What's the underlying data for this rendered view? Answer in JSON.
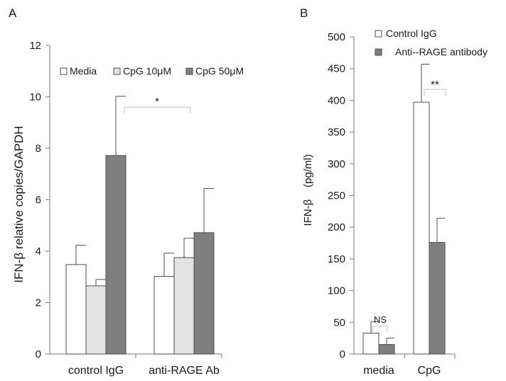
{
  "chart_data": [
    {
      "panel_label": "A",
      "type": "bar",
      "title": "",
      "ylabel": "IFN-β relative copies/GAPDH",
      "xlabel": "",
      "ylim": [
        0,
        12
      ],
      "yticks": [
        0,
        2,
        4,
        6,
        8,
        10,
        12
      ],
      "categories": [
        "control IgG",
        "anti-RAGE Ab"
      ],
      "series": [
        {
          "name": "Media",
          "color": "#ffffff",
          "values": [
            3.48,
            3.02
          ],
          "errors": [
            0.75,
            0.9
          ]
        },
        {
          "name": "CpG 10μM",
          "color": "#e3e3e3",
          "values": [
            2.65,
            3.75
          ],
          "errors": [
            0.25,
            0.75
          ]
        },
        {
          "name": "CpG 50μM",
          "color": "#7f7f7f",
          "values": [
            7.72,
            4.72
          ],
          "errors": [
            2.3,
            1.72
          ]
        }
      ],
      "legend_position": "top",
      "grid": false,
      "annotations": [
        {
          "text": "*",
          "between": [
            "control IgG / CpG 50μM",
            "anti-RAGE Ab / CpG 50μM"
          ]
        }
      ]
    },
    {
      "panel_label": "B",
      "type": "bar",
      "title": "",
      "ylabel": "IFN-β    (pg/ml)",
      "xlabel": "",
      "ylim": [
        0,
        500
      ],
      "yticks": [
        0,
        50,
        100,
        150,
        200,
        250,
        300,
        350,
        400,
        450,
        500
      ],
      "categories": [
        "media",
        "CpG"
      ],
      "series": [
        {
          "name": "Control IgG",
          "color": "#ffffff",
          "values": [
            33,
            397
          ],
          "errors": [
            18,
            60
          ]
        },
        {
          "name": "Anti--RAGE antibody",
          "color": "#7f7f7f",
          "values": [
            15,
            176
          ],
          "errors": [
            10,
            38
          ]
        }
      ],
      "legend_position": "top-right",
      "grid": false,
      "annotations": [
        {
          "text": "NS",
          "category": "media"
        },
        {
          "text": "**",
          "category": "CpG"
        }
      ]
    }
  ]
}
